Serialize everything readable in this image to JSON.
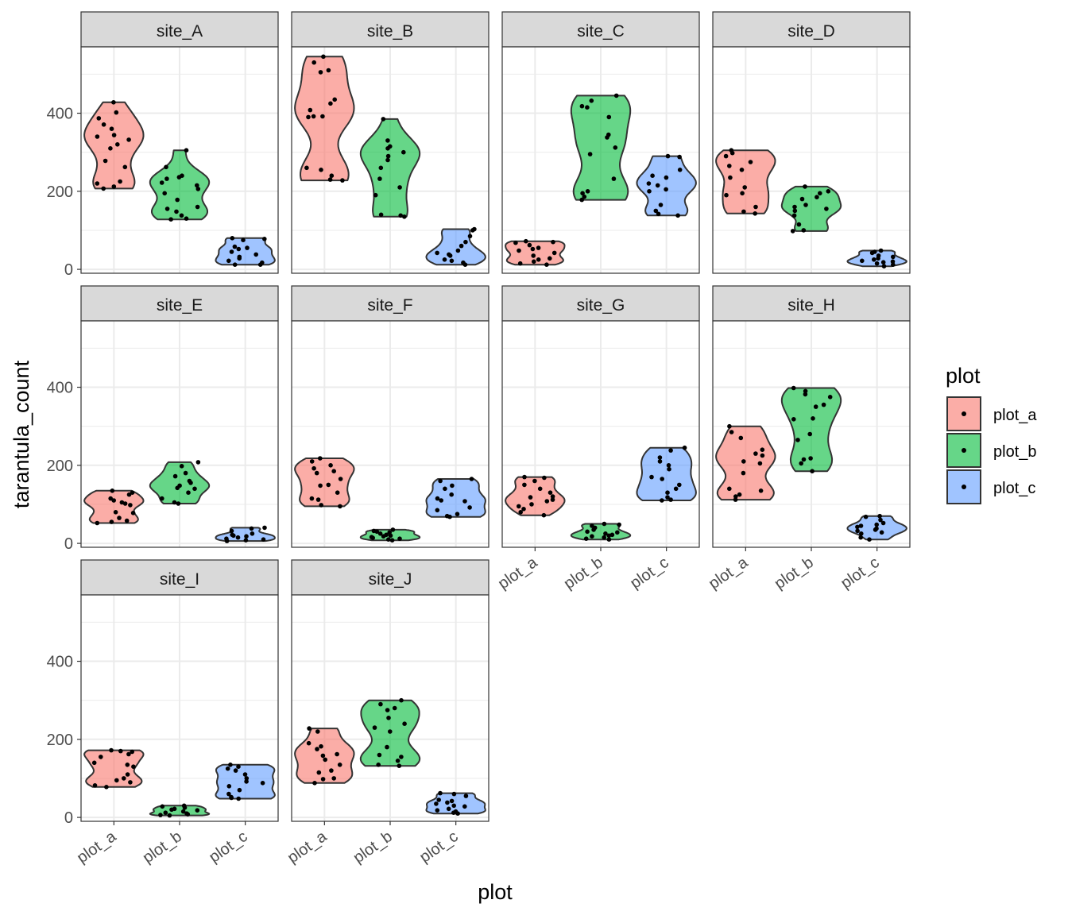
{
  "chart_data": {
    "type": "violin",
    "xlabel": "plot",
    "ylabel": "tarantula_count",
    "categories": [
      "plot_a",
      "plot_b",
      "plot_c"
    ],
    "ylim": [
      -10,
      570
    ],
    "yticks": [
      0,
      200,
      400
    ],
    "grid": true,
    "legend": {
      "title": "plot",
      "position": "right",
      "entries": [
        "plot_a",
        "plot_b",
        "plot_c"
      ]
    },
    "colors": {
      "plot_a": "#F8766D",
      "plot_b": "#00BA38",
      "plot_c": "#619CFF",
      "strip_bg": "#D9D9D9",
      "grid": "#EBEBEB"
    },
    "facets": [
      {
        "label": "site_A",
        "series": [
          {
            "category": "plot_a",
            "values": [
              428,
              402,
              387,
              371,
              360,
              344,
              340,
              332,
              320,
              310,
              278,
              262,
              225,
              220,
              212,
              207
            ]
          },
          {
            "category": "plot_b",
            "values": [
              305,
              262,
              240,
              236,
              232,
              222,
              215,
              206,
              195,
              178,
              160,
              155,
              148,
              138,
              130,
              128
            ]
          },
          {
            "category": "plot_c",
            "values": [
              80,
              78,
              75,
              58,
              55,
              52,
              45,
              38,
              32,
              28,
              22,
              17,
              12,
              12
            ]
          }
        ]
      },
      {
        "label": "site_B",
        "series": [
          {
            "category": "plot_a",
            "values": [
              545,
              530,
              510,
              505,
              435,
              425,
              408,
              392,
              392,
              390,
              260,
              255,
              240,
              230,
              228
            ]
          },
          {
            "category": "plot_b",
            "values": [
              385,
              330,
              315,
              310,
              300,
              290,
              280,
              260,
              232,
              210,
              190,
              140,
              138,
              135
            ]
          },
          {
            "category": "plot_c",
            "values": [
              103,
              100,
              85,
              70,
              60,
              48,
              42,
              38,
              35,
              25,
              22,
              17,
              12
            ]
          }
        ]
      },
      {
        "label": "site_C",
        "series": [
          {
            "category": "plot_a",
            "values": [
              72,
              70,
              68,
              62,
              55,
              52,
              48,
              42,
              35,
              28,
              25,
              20,
              15,
              12
            ]
          },
          {
            "category": "plot_b",
            "values": [
              445,
              432,
              418,
              415,
              390,
              345,
              338,
              312,
              295,
              232,
              200,
              195,
              186,
              178
            ]
          },
          {
            "category": "plot_c",
            "values": [
              290,
              288,
              255,
              240,
              235,
              220,
              215,
              205,
              200,
              165,
              150,
              142,
              138
            ]
          }
        ]
      },
      {
        "label": "site_D",
        "series": [
          {
            "category": "plot_a",
            "values": [
              305,
              298,
              290,
              275,
              265,
              255,
              235,
              210,
              195,
              190,
              160,
              148,
              143
            ]
          },
          {
            "category": "plot_b",
            "values": [
              212,
              200,
              195,
              185,
              180,
              165,
              160,
              155,
              150,
              138,
              115,
              100,
              98
            ]
          },
          {
            "category": "plot_c",
            "values": [
              48,
              45,
              42,
              35,
              32,
              28,
              25,
              22,
              20,
              18,
              15,
              12,
              8
            ]
          }
        ]
      },
      {
        "label": "site_E",
        "series": [
          {
            "category": "plot_a",
            "values": [
              135,
              130,
              125,
              115,
              110,
              105,
              102,
              98,
              80,
              78,
              65,
              58,
              55,
              52
            ]
          },
          {
            "category": "plot_b",
            "values": [
              208,
              198,
              180,
              172,
              160,
              155,
              148,
              142,
              140,
              130,
              115,
              105,
              102
            ]
          },
          {
            "category": "plot_c",
            "values": [
              40,
              38,
              32,
              25,
              22,
              20,
              18,
              15,
              12,
              10,
              8,
              6
            ]
          }
        ]
      },
      {
        "label": "site_F",
        "series": [
          {
            "category": "plot_a",
            "values": [
              218,
              210,
              200,
              192,
              185,
              180,
              165,
              150,
              148,
              130,
              115,
              112,
              98,
              95
            ]
          },
          {
            "category": "plot_b",
            "values": [
              35,
              32,
              30,
              28,
              25,
              22,
              20,
              18,
              16,
              14,
              12,
              10,
              8
            ]
          },
          {
            "category": "plot_c",
            "values": [
              165,
              160,
              148,
              140,
              125,
              115,
              110,
              108,
              92,
              85,
              75,
              70,
              68
            ]
          }
        ]
      },
      {
        "label": "site_G",
        "series": [
          {
            "category": "plot_a",
            "values": [
              170,
              168,
              160,
              150,
              140,
              130,
              120,
              118,
              112,
              108,
              100,
              95,
              88,
              80,
              72
            ]
          },
          {
            "category": "plot_b",
            "values": [
              50,
              48,
              45,
              40,
              35,
              30,
              28,
              25,
              22,
              20,
              18,
              15,
              12,
              10
            ]
          },
          {
            "category": "plot_c",
            "values": [
              245,
              238,
              220,
              210,
              200,
              190,
              170,
              165,
              150,
              140,
              130,
              118,
              112,
              110
            ]
          }
        ]
      },
      {
        "label": "site_H",
        "series": [
          {
            "category": "plot_a",
            "values": [
              300,
              285,
              270,
              240,
              230,
              225,
              210,
              205,
              180,
              140,
              135,
              125,
              120,
              112
            ]
          },
          {
            "category": "plot_b",
            "values": [
              398,
              390,
              382,
              375,
              355,
              350,
              320,
              318,
              280,
              265,
              218,
              215,
              205,
              185
            ]
          },
          {
            "category": "plot_c",
            "values": [
              70,
              68,
              60,
              52,
              48,
              45,
              42,
              38,
              35,
              32,
              28,
              25,
              15,
              10
            ]
          }
        ]
      },
      {
        "label": "site_I",
        "series": [
          {
            "category": "plot_a",
            "values": [
              172,
              170,
              168,
              162,
              155,
              140,
              135,
              130,
              110,
              100,
              95,
              90,
              82,
              78
            ]
          },
          {
            "category": "plot_b",
            "values": [
              30,
              28,
              25,
              22,
              20,
              18,
              15,
              12,
              10,
              8,
              6,
              5
            ]
          },
          {
            "category": "plot_c",
            "values": [
              135,
              130,
              125,
              120,
              110,
              100,
              92,
              88,
              80,
              70,
              60,
              52,
              50,
              48
            ]
          }
        ]
      },
      {
        "label": "site_J",
        "series": [
          {
            "category": "plot_a",
            "values": [
              228,
              220,
              190,
              182,
              175,
              162,
              158,
              148,
              135,
              120,
              115,
              100,
              98,
              88
            ]
          },
          {
            "category": "plot_b",
            "values": [
              300,
              290,
              280,
              275,
              255,
              240,
              230,
              220,
              180,
              160,
              155,
              145,
              135,
              132
            ]
          },
          {
            "category": "plot_c",
            "values": [
              62,
              60,
              55,
              45,
              42,
              38,
              35,
              30,
              28,
              22,
              18,
              15,
              12,
              10
            ]
          }
        ]
      }
    ]
  }
}
